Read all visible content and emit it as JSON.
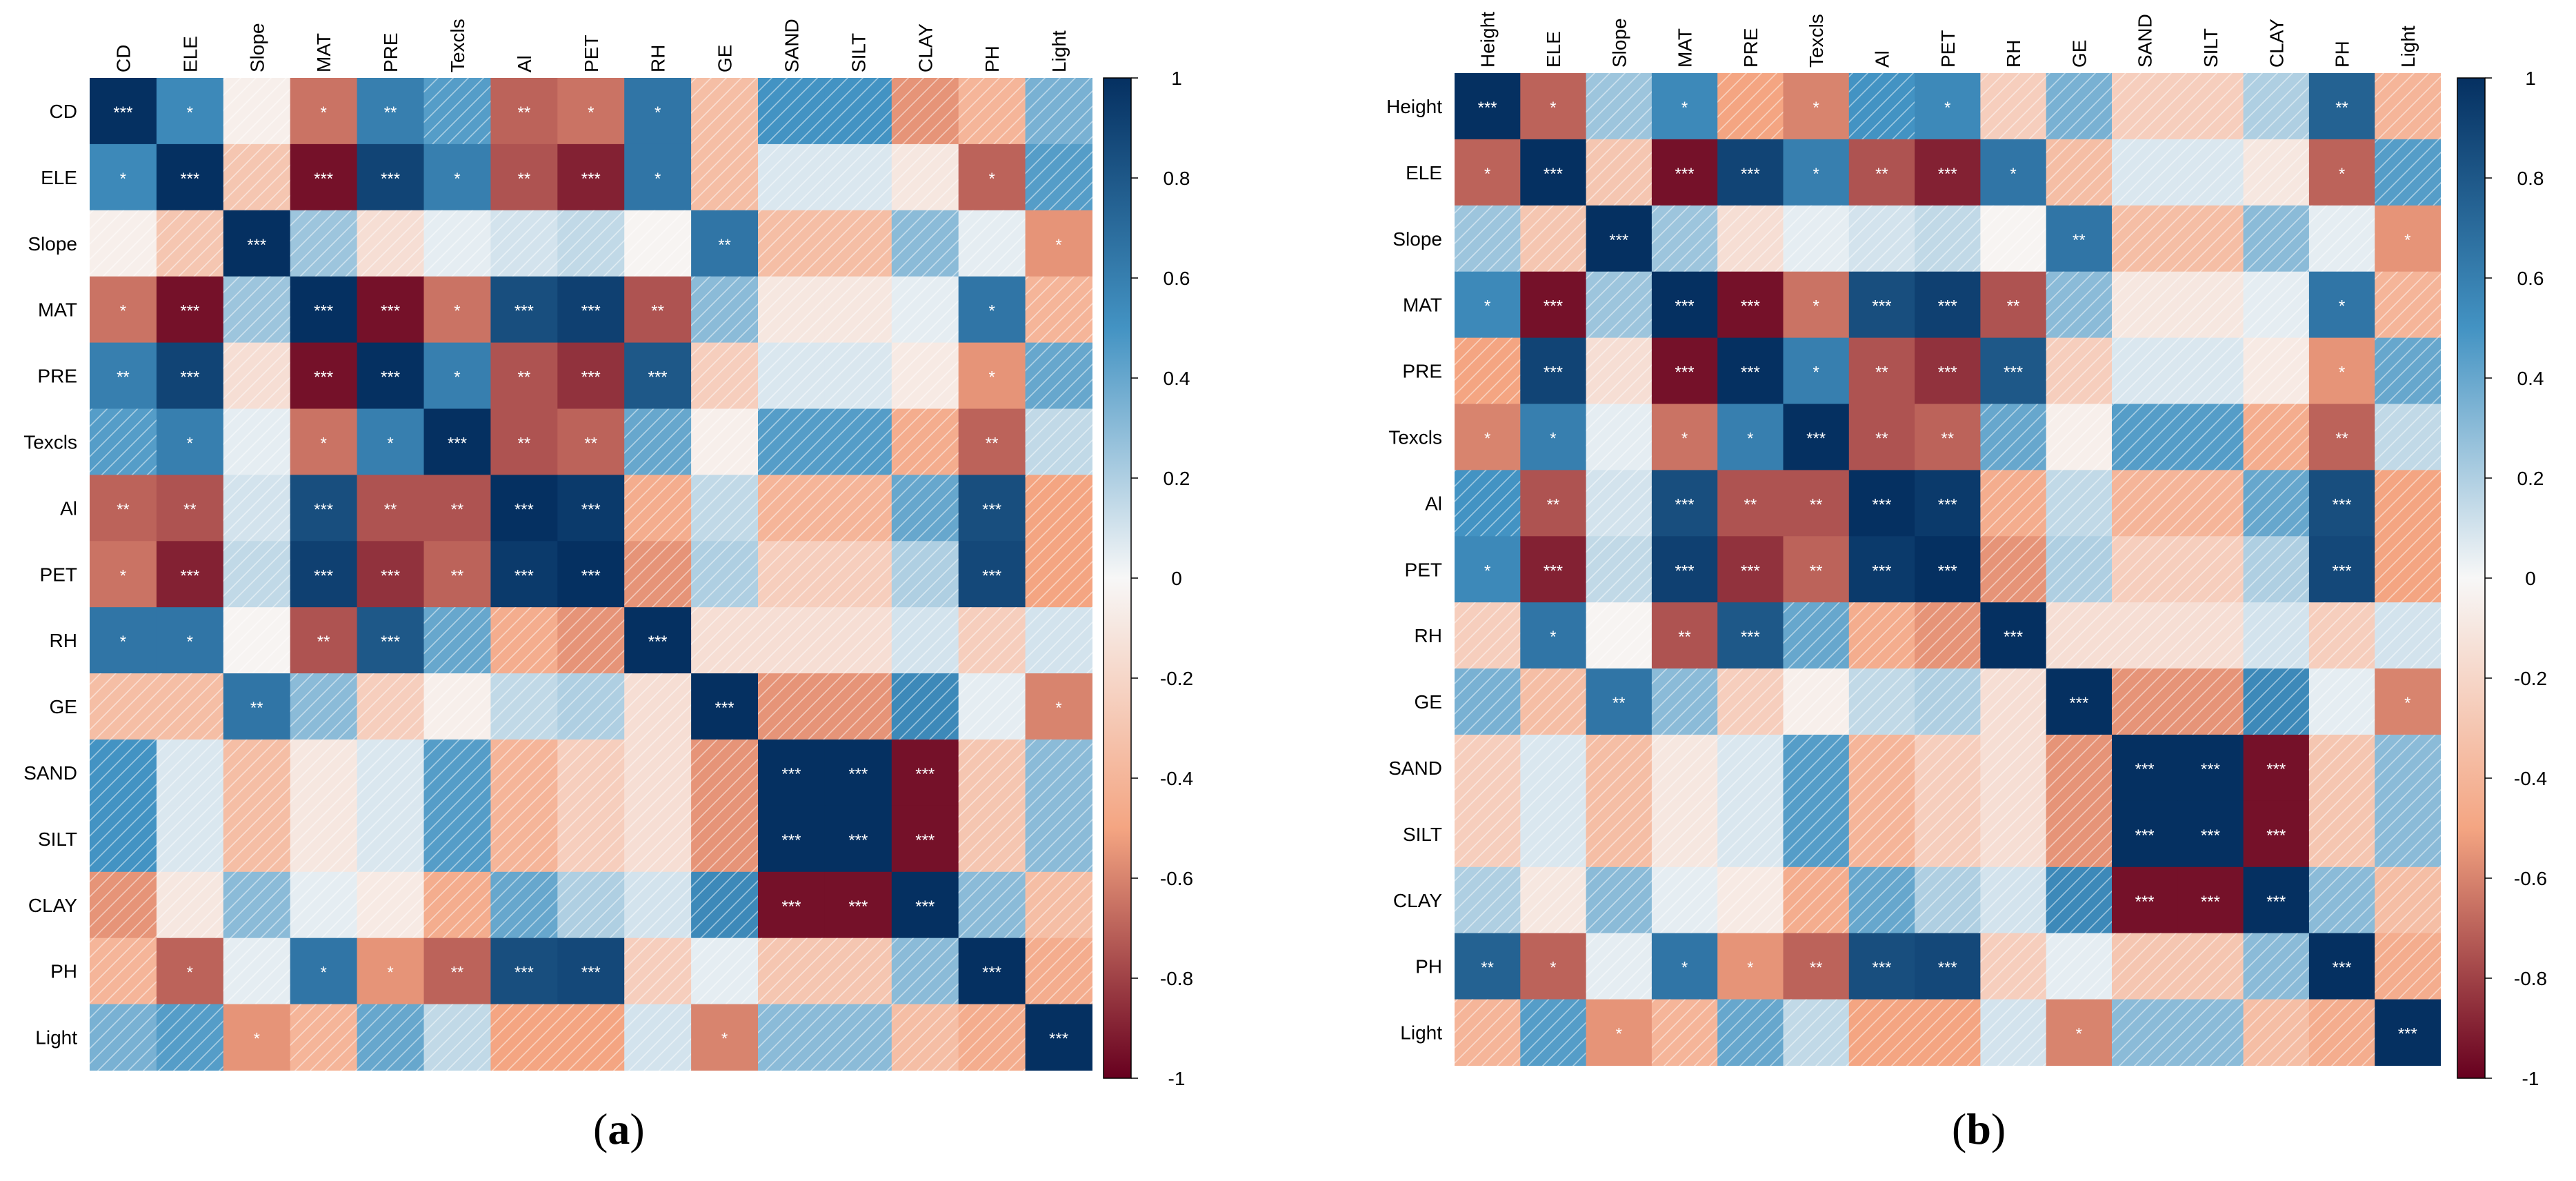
{
  "chart_data": [
    {
      "type": "heatmap",
      "panel_label": "(a)",
      "panel_letter": "a",
      "variables": [
        "CD",
        "ELE",
        "Slope",
        "MAT",
        "PRE",
        "Texcls",
        "Al",
        "PET",
        "RH",
        "GE",
        "SAND",
        "SILT",
        "CLAY",
        "PH",
        "Light"
      ],
      "values": [
        [
          1.0,
          0.55,
          -0.05,
          -0.65,
          0.6,
          0.45,
          -0.7,
          -0.65,
          0.65,
          -0.35,
          0.5,
          0.5,
          -0.55,
          -0.4,
          0.35
        ],
        [
          0.55,
          1.0,
          -0.3,
          -0.95,
          0.9,
          0.6,
          -0.75,
          -0.9,
          0.65,
          -0.35,
          0.08,
          0.08,
          -0.1,
          -0.7,
          0.45
        ],
        [
          -0.05,
          -0.3,
          1.0,
          0.25,
          -0.15,
          0.05,
          0.1,
          0.15,
          -0.02,
          0.65,
          -0.35,
          -0.35,
          0.3,
          0.05,
          -0.55
        ],
        [
          -0.65,
          -0.95,
          0.25,
          1.0,
          -0.95,
          -0.65,
          0.85,
          0.92,
          -0.75,
          0.3,
          -0.1,
          -0.1,
          0.05,
          0.65,
          -0.4
        ],
        [
          0.6,
          0.9,
          -0.15,
          -0.95,
          1.0,
          0.6,
          -0.75,
          -0.85,
          0.8,
          -0.25,
          0.08,
          0.08,
          -0.08,
          -0.55,
          0.4
        ],
        [
          0.45,
          0.6,
          0.05,
          -0.65,
          0.6,
          1.0,
          -0.75,
          -0.7,
          0.4,
          -0.05,
          0.45,
          0.45,
          -0.45,
          -0.7,
          0.15
        ],
        [
          -0.7,
          -0.75,
          0.1,
          0.85,
          -0.75,
          -0.75,
          1.0,
          0.95,
          -0.45,
          0.15,
          -0.4,
          -0.4,
          0.4,
          0.85,
          -0.5
        ],
        [
          -0.65,
          -0.9,
          0.15,
          0.92,
          -0.85,
          -0.7,
          0.95,
          1.0,
          -0.55,
          0.2,
          -0.25,
          -0.25,
          0.2,
          0.88,
          -0.5
        ],
        [
          0.65,
          0.65,
          -0.02,
          -0.75,
          0.8,
          0.4,
          -0.45,
          -0.55,
          1.0,
          -0.15,
          -0.15,
          -0.15,
          0.1,
          -0.25,
          0.1
        ],
        [
          -0.35,
          -0.35,
          0.65,
          0.3,
          -0.25,
          -0.05,
          0.15,
          0.2,
          -0.15,
          1.0,
          -0.55,
          -0.55,
          0.55,
          0.05,
          -0.6
        ],
        [
          0.5,
          0.08,
          -0.35,
          -0.1,
          0.08,
          0.45,
          -0.4,
          -0.25,
          -0.15,
          -0.55,
          1.0,
          1.0,
          -0.95,
          -0.3,
          0.3
        ],
        [
          0.5,
          0.08,
          -0.35,
          -0.1,
          0.08,
          0.45,
          -0.4,
          -0.25,
          -0.15,
          -0.55,
          1.0,
          1.0,
          -0.95,
          -0.3,
          0.3
        ],
        [
          -0.55,
          -0.1,
          0.3,
          0.05,
          -0.08,
          -0.45,
          0.4,
          0.2,
          0.1,
          0.55,
          -0.95,
          -0.95,
          1.0,
          0.3,
          -0.35
        ],
        [
          -0.4,
          -0.7,
          0.05,
          0.65,
          -0.55,
          -0.7,
          0.85,
          0.88,
          -0.25,
          0.05,
          -0.3,
          -0.3,
          0.3,
          1.0,
          -0.45
        ],
        [
          0.35,
          0.45,
          -0.55,
          -0.4,
          0.4,
          0.15,
          -0.5,
          -0.5,
          0.1,
          -0.6,
          0.3,
          0.3,
          -0.35,
          -0.45,
          1.0
        ]
      ],
      "significance": [
        [
          "***",
          "*",
          "",
          "*",
          "**",
          "",
          "**",
          "*",
          "*",
          "",
          "",
          "",
          "",
          "",
          ""
        ],
        [
          "*",
          "***",
          "",
          "***",
          "***",
          "*",
          "**",
          "***",
          "*",
          "",
          "",
          "",
          "",
          "*",
          ""
        ],
        [
          "",
          "",
          "***",
          "",
          "",
          "",
          "",
          "",
          "",
          "**",
          "",
          "",
          "",
          "",
          "*"
        ],
        [
          "*",
          "***",
          "",
          "***",
          "***",
          "*",
          "***",
          "***",
          "**",
          "",
          "",
          "",
          "",
          "*",
          ""
        ],
        [
          "**",
          "***",
          "",
          "***",
          "***",
          "*",
          "**",
          "***",
          "***",
          "",
          "",
          "",
          "",
          "*",
          ""
        ],
        [
          "",
          "*",
          "",
          "*",
          "*",
          "***",
          "**",
          "**",
          "",
          "",
          "",
          "",
          "",
          "**",
          ""
        ],
        [
          "**",
          "**",
          "",
          "***",
          "**",
          "**",
          "***",
          "***",
          "",
          "",
          "",
          "",
          "",
          "***",
          ""
        ],
        [
          "*",
          "***",
          "",
          "***",
          "***",
          "**",
          "***",
          "***",
          "",
          "",
          "",
          "",
          "",
          "***",
          ""
        ],
        [
          "*",
          "*",
          "",
          "**",
          "***",
          "",
          "",
          "",
          "***",
          "",
          "",
          "",
          "",
          "",
          ""
        ],
        [
          "",
          "",
          "**",
          "",
          "",
          "",
          "",
          "",
          "",
          "***",
          "",
          "",
          "",
          "",
          "*"
        ],
        [
          "",
          "",
          "",
          "",
          "",
          "",
          "",
          "",
          "",
          "",
          "***",
          "***",
          "***",
          "",
          ""
        ],
        [
          "",
          "",
          "",
          "",
          "",
          "",
          "",
          "",
          "",
          "",
          "***",
          "***",
          "***",
          "",
          ""
        ],
        [
          "",
          "",
          "",
          "",
          "",
          "",
          "",
          "",
          "",
          "",
          "***",
          "***",
          "***",
          "",
          ""
        ],
        [
          "",
          "*",
          "",
          "*",
          "*",
          "**",
          "***",
          "***",
          "",
          "",
          "",
          "",
          "",
          "***",
          ""
        ],
        [
          "",
          "",
          "*",
          "",
          "",
          "",
          "",
          "",
          "",
          "*",
          "",
          "",
          "",
          "",
          "***"
        ]
      ],
      "colorbar_ticks": [
        "1",
        "0.8",
        "0.6",
        "0.4",
        "0.2",
        "0",
        "-0.2",
        "-0.4",
        "-0.6",
        "-0.8",
        "-1"
      ],
      "range": [
        -1,
        1
      ]
    },
    {
      "type": "heatmap",
      "panel_label": "(b)",
      "panel_letter": "b",
      "variables": [
        "Height",
        "ELE",
        "Slope",
        "MAT",
        "PRE",
        "Texcls",
        "Al",
        "PET",
        "RH",
        "GE",
        "SAND",
        "SILT",
        "CLAY",
        "PH",
        "Light"
      ],
      "values": [
        [
          1.0,
          -0.7,
          0.25,
          0.55,
          -0.5,
          -0.6,
          0.5,
          0.55,
          -0.25,
          0.35,
          -0.25,
          -0.25,
          0.2,
          0.75,
          -0.4
        ],
        [
          -0.7,
          1.0,
          -0.3,
          -0.95,
          0.9,
          0.6,
          -0.75,
          -0.9,
          0.65,
          -0.35,
          0.08,
          0.08,
          -0.1,
          -0.7,
          0.45
        ],
        [
          0.25,
          -0.3,
          1.0,
          0.25,
          -0.15,
          0.05,
          0.1,
          0.15,
          -0.02,
          0.65,
          -0.35,
          -0.35,
          0.3,
          0.05,
          -0.55
        ],
        [
          0.55,
          -0.95,
          0.25,
          1.0,
          -0.95,
          -0.65,
          0.85,
          0.92,
          -0.75,
          0.3,
          -0.1,
          -0.1,
          0.05,
          0.65,
          -0.4
        ],
        [
          -0.5,
          0.9,
          -0.15,
          -0.95,
          1.0,
          0.6,
          -0.75,
          -0.85,
          0.8,
          -0.25,
          0.08,
          0.08,
          -0.08,
          -0.55,
          0.4
        ],
        [
          -0.6,
          0.6,
          0.05,
          -0.65,
          0.6,
          1.0,
          -0.75,
          -0.7,
          0.4,
          -0.05,
          0.45,
          0.45,
          -0.45,
          -0.7,
          0.15
        ],
        [
          0.5,
          -0.75,
          0.1,
          0.85,
          -0.75,
          -0.75,
          1.0,
          0.95,
          -0.45,
          0.15,
          -0.4,
          -0.4,
          0.4,
          0.85,
          -0.5
        ],
        [
          0.55,
          -0.9,
          0.15,
          0.92,
          -0.85,
          -0.7,
          0.95,
          1.0,
          -0.55,
          0.2,
          -0.25,
          -0.25,
          0.2,
          0.88,
          -0.5
        ],
        [
          -0.25,
          0.65,
          -0.02,
          -0.75,
          0.8,
          0.4,
          -0.45,
          -0.55,
          1.0,
          -0.15,
          -0.15,
          -0.15,
          0.1,
          -0.25,
          0.1
        ],
        [
          0.35,
          -0.35,
          0.65,
          0.3,
          -0.25,
          -0.05,
          0.15,
          0.2,
          -0.15,
          1.0,
          -0.55,
          -0.55,
          0.55,
          0.05,
          -0.6
        ],
        [
          -0.25,
          0.08,
          -0.35,
          -0.1,
          0.08,
          0.45,
          -0.4,
          -0.25,
          -0.15,
          -0.55,
          1.0,
          1.0,
          -0.95,
          -0.3,
          0.3
        ],
        [
          -0.25,
          0.08,
          -0.35,
          -0.1,
          0.08,
          0.45,
          -0.4,
          -0.25,
          -0.15,
          -0.55,
          1.0,
          1.0,
          -0.95,
          -0.3,
          0.3
        ],
        [
          0.2,
          -0.1,
          0.3,
          0.05,
          -0.08,
          -0.45,
          0.4,
          0.2,
          0.1,
          0.55,
          -0.95,
          -0.95,
          1.0,
          0.3,
          -0.35
        ],
        [
          0.75,
          -0.7,
          0.05,
          0.65,
          -0.55,
          -0.7,
          0.85,
          0.88,
          -0.25,
          0.05,
          -0.3,
          -0.3,
          0.3,
          1.0,
          -0.45
        ],
        [
          -0.4,
          0.45,
          -0.55,
          -0.4,
          0.4,
          0.15,
          -0.5,
          -0.5,
          0.1,
          -0.6,
          0.3,
          0.3,
          -0.35,
          -0.45,
          1.0
        ]
      ],
      "significance": [
        [
          "***",
          "*",
          "",
          "*",
          "",
          "*",
          "",
          "*",
          "",
          "",
          "",
          "",
          "",
          "**",
          ""
        ],
        [
          "*",
          "***",
          "",
          "***",
          "***",
          "*",
          "**",
          "***",
          "*",
          "",
          "",
          "",
          "",
          "*",
          ""
        ],
        [
          "",
          "",
          "***",
          "",
          "",
          "",
          "",
          "",
          "",
          "**",
          "",
          "",
          "",
          "",
          "*"
        ],
        [
          "*",
          "***",
          "",
          "***",
          "***",
          "*",
          "***",
          "***",
          "**",
          "",
          "",
          "",
          "",
          "*",
          ""
        ],
        [
          "",
          "***",
          "",
          "***",
          "***",
          "*",
          "**",
          "***",
          "***",
          "",
          "",
          "",
          "",
          "*",
          ""
        ],
        [
          "*",
          "*",
          "",
          "*",
          "*",
          "***",
          "**",
          "**",
          "",
          "",
          "",
          "",
          "",
          "**",
          ""
        ],
        [
          "",
          "**",
          "",
          "***",
          "**",
          "**",
          "***",
          "***",
          "",
          "",
          "",
          "",
          "",
          "***",
          ""
        ],
        [
          "*",
          "***",
          "",
          "***",
          "***",
          "**",
          "***",
          "***",
          "",
          "",
          "",
          "",
          "",
          "***",
          ""
        ],
        [
          "",
          "*",
          "",
          "**",
          "***",
          "",
          "",
          "",
          "***",
          "",
          "",
          "",
          "",
          "",
          ""
        ],
        [
          "",
          "",
          "**",
          "",
          "",
          "",
          "",
          "",
          "",
          "***",
          "",
          "",
          "",
          "",
          "*"
        ],
        [
          "",
          "",
          "",
          "",
          "",
          "",
          "",
          "",
          "",
          "",
          "***",
          "***",
          "***",
          "",
          ""
        ],
        [
          "",
          "",
          "",
          "",
          "",
          "",
          "",
          "",
          "",
          "",
          "***",
          "***",
          "***",
          "",
          ""
        ],
        [
          "",
          "",
          "",
          "",
          "",
          "",
          "",
          "",
          "",
          "",
          "***",
          "***",
          "***",
          "",
          ""
        ],
        [
          "**",
          "*",
          "",
          "*",
          "*",
          "**",
          "***",
          "***",
          "",
          "",
          "",
          "",
          "",
          "***",
          ""
        ],
        [
          "",
          "",
          "*",
          "",
          "",
          "",
          "",
          "",
          "",
          "*",
          "",
          "",
          "",
          "",
          "***"
        ]
      ],
      "colorbar_ticks": [
        "1",
        "0.8",
        "0.6",
        "0.4",
        "0.2",
        "0",
        "-0.2",
        "-0.4",
        "-0.6",
        "-0.8",
        "-1"
      ],
      "range": [
        -1,
        1
      ]
    }
  ],
  "colors": {
    "positive_max": "#053061",
    "positive_mid": "#4393c3",
    "neutral": "#f7f7f7",
    "negative_mid": "#f4a582",
    "negative_max": "#67001f",
    "hatch": "#ffffff"
  }
}
